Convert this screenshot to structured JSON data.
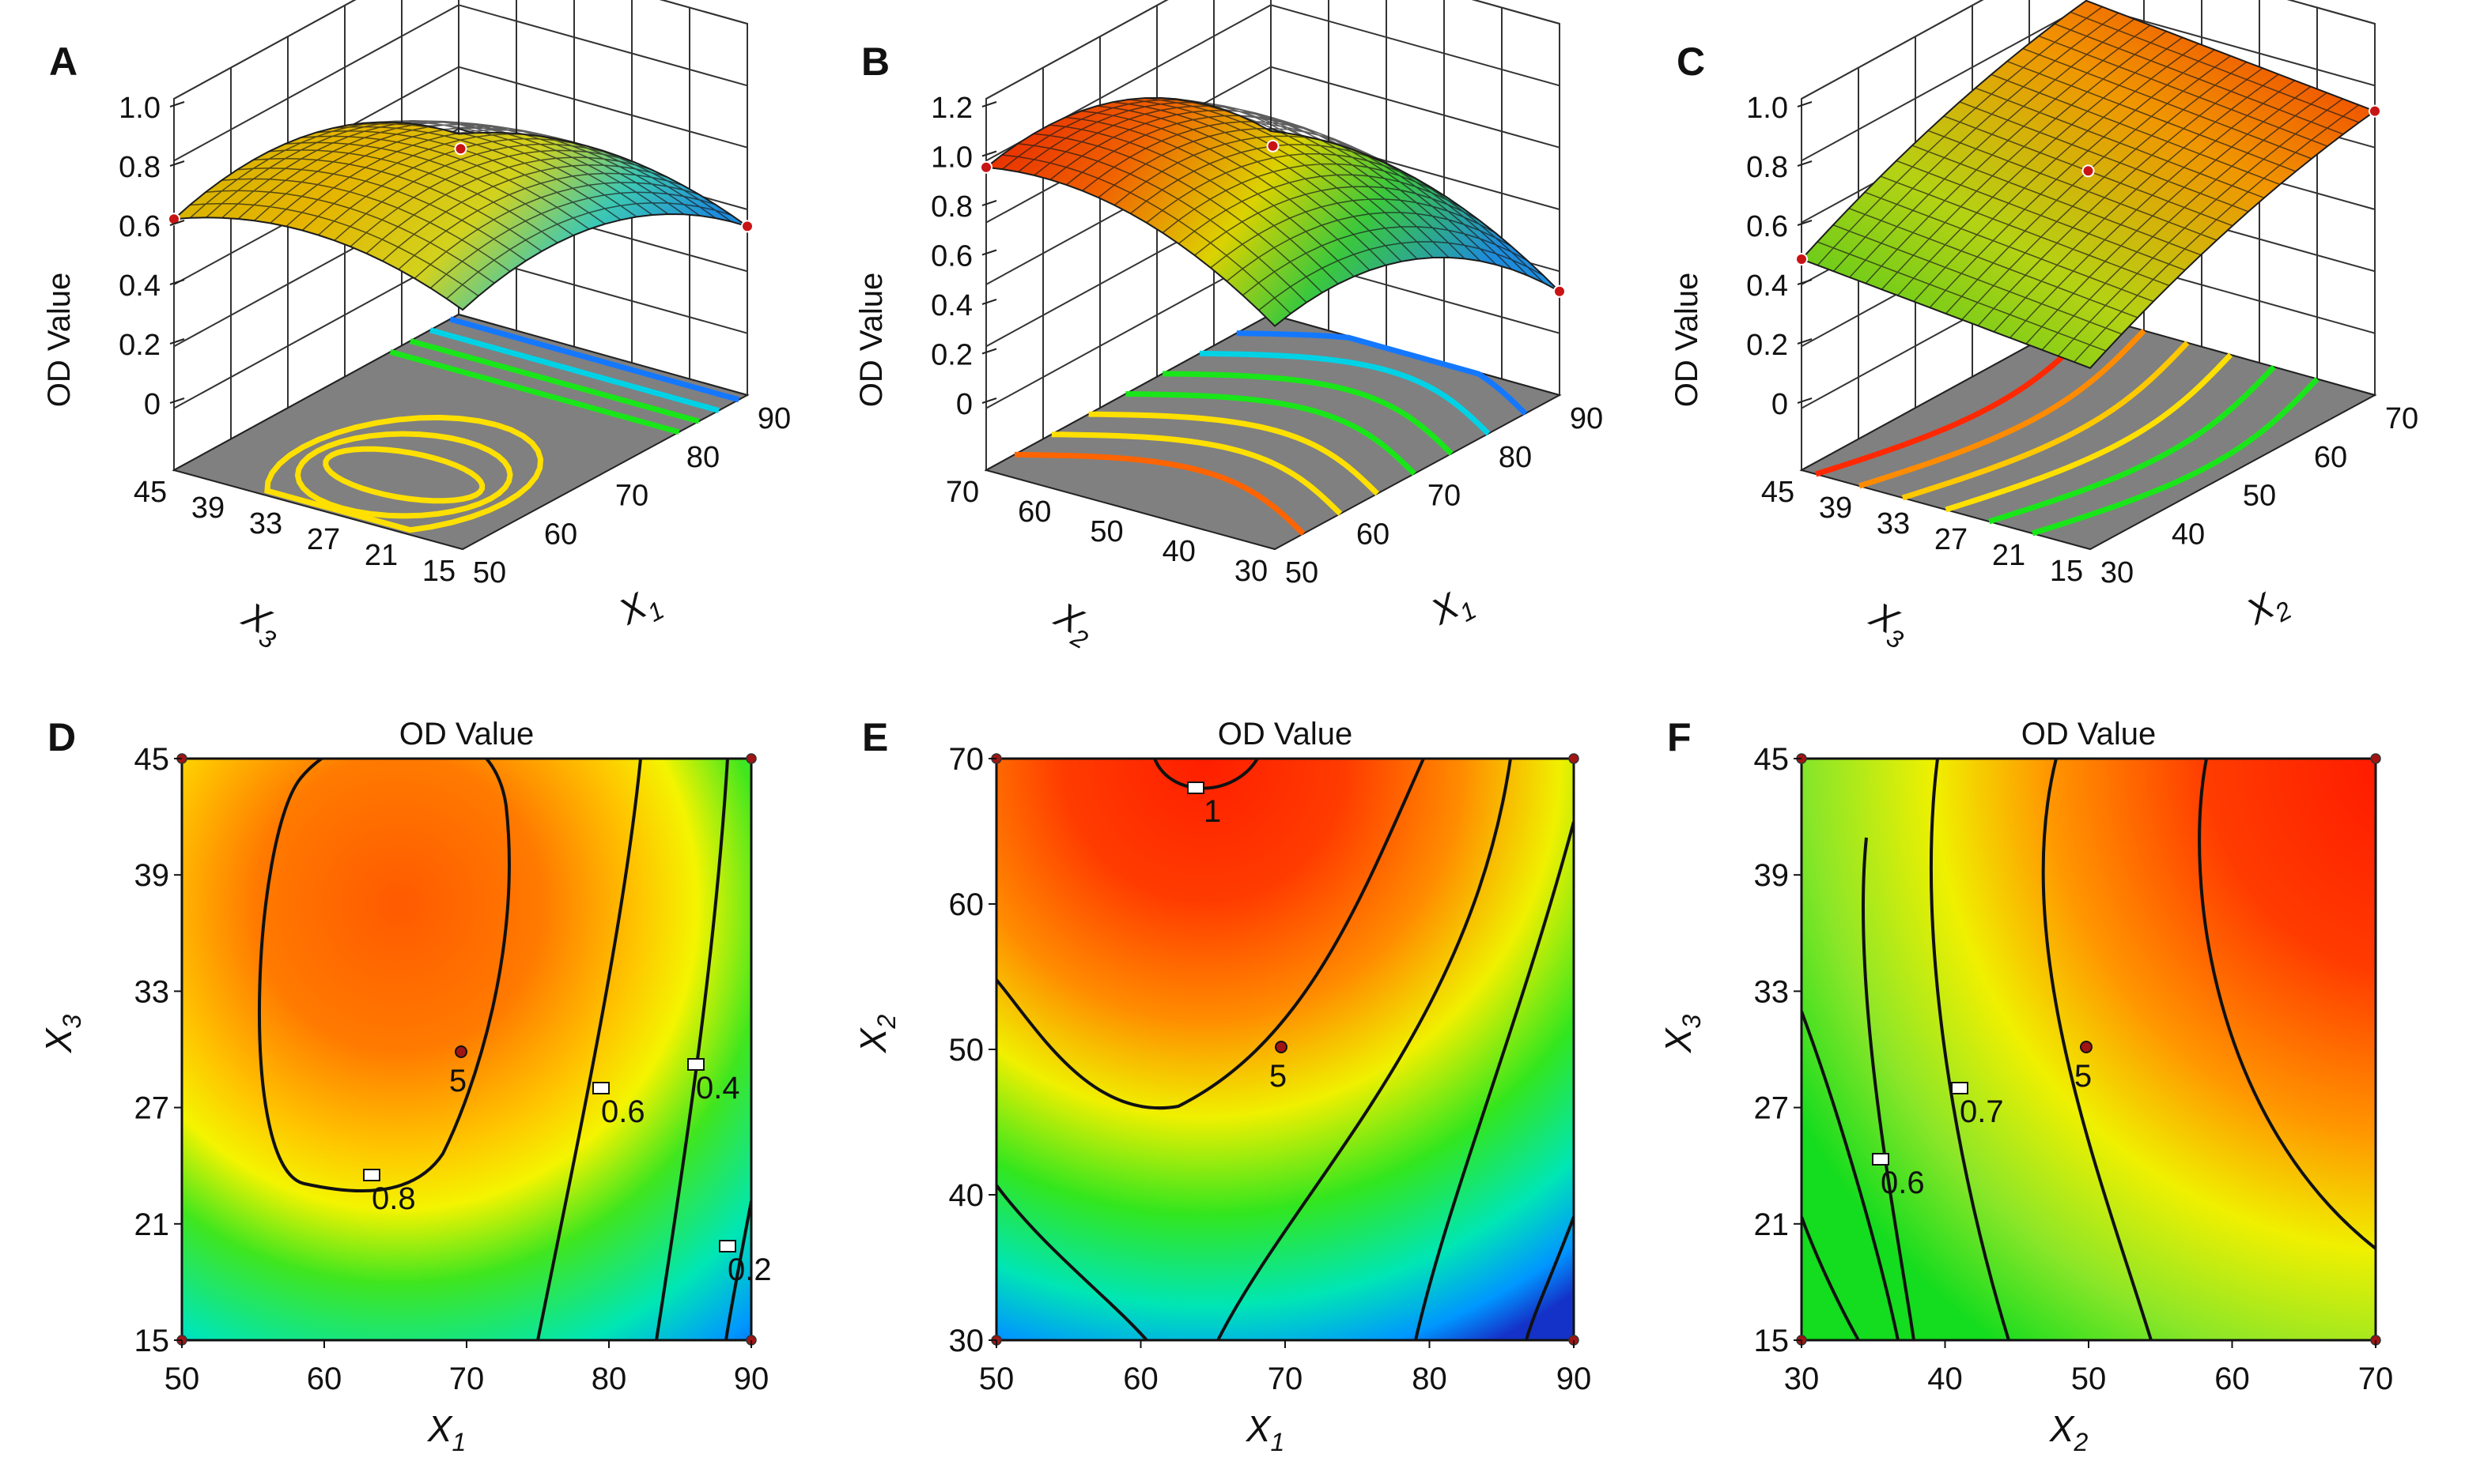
{
  "figure": {
    "surface_panels": [
      {
        "id": "A",
        "label": "A",
        "zlabel": "OD Value",
        "zticks": [
          "1.0",
          "0.8",
          "0.6",
          "0.4",
          "0.2",
          "0"
        ],
        "left_axis": {
          "var": "X",
          "sub": "3",
          "ticks": [
            "45",
            "39",
            "33",
            "27",
            "21",
            "15"
          ]
        },
        "right_axis": {
          "var": "X",
          "sub": "1",
          "ticks": [
            "50",
            "60",
            "70",
            "80",
            "90"
          ]
        },
        "floor_contours": [
          "#ffe000",
          "#ffe000",
          "#ffe000",
          "#19e619",
          "#19e619",
          "#00d2e6",
          "#1478ff"
        ]
      },
      {
        "id": "B",
        "label": "B",
        "zlabel": "OD Value",
        "zticks": [
          "1.2",
          "1.0",
          "0.8",
          "0.6",
          "0.4",
          "0.2",
          "0"
        ],
        "left_axis": {
          "var": "X",
          "sub": "2",
          "ticks": [
            "70",
            "60",
            "50",
            "40",
            "30"
          ]
        },
        "right_axis": {
          "var": "X",
          "sub": "1",
          "ticks": [
            "50",
            "60",
            "70",
            "80",
            "90"
          ]
        },
        "floor_contours": [
          "#ff6400",
          "#ffe000",
          "#ffe000",
          "#19e619",
          "#19e619",
          "#00d2e6",
          "#1478ff"
        ]
      },
      {
        "id": "C",
        "label": "C",
        "zlabel": "OD Value",
        "zticks": [
          "1.0",
          "0.8",
          "0.6",
          "0.4",
          "0.2",
          "0"
        ],
        "left_axis": {
          "var": "X",
          "sub": "3",
          "ticks": [
            "45",
            "39",
            "33",
            "27",
            "21",
            "15"
          ]
        },
        "right_axis": {
          "var": "X",
          "sub": "2",
          "ticks": [
            "30",
            "40",
            "50",
            "60",
            "70"
          ]
        },
        "floor_contours": [
          "#ff2800",
          "#ff8c00",
          "#ffc800",
          "#ffe000",
          "#19e619",
          "#19e619"
        ]
      }
    ],
    "contour_panels": [
      {
        "id": "D",
        "label": "D",
        "title": "OD Value",
        "x": {
          "var": "X",
          "sub": "1",
          "ticks": [
            "50",
            "60",
            "70",
            "80",
            "90"
          ]
        },
        "y": {
          "var": "X",
          "sub": "3",
          "ticks": [
            "45",
            "39",
            "33",
            "27",
            "21",
            "15"
          ]
        },
        "contour_labels": [
          "0.8",
          "0.6",
          "0.4",
          "0.2"
        ],
        "center_count": "5"
      },
      {
        "id": "E",
        "label": "E",
        "title": "OD Value",
        "x": {
          "var": "X",
          "sub": "1",
          "ticks": [
            "50",
            "60",
            "70",
            "80",
            "90"
          ]
        },
        "y": {
          "var": "X",
          "sub": "2",
          "ticks": [
            "70",
            "60",
            "50",
            "40",
            "30"
          ]
        },
        "contour_labels": [
          "1"
        ],
        "center_count": "5"
      },
      {
        "id": "F",
        "label": "F",
        "title": "OD Value",
        "x": {
          "var": "X",
          "sub": "2",
          "ticks": [
            "30",
            "40",
            "50",
            "60",
            "70"
          ]
        },
        "y": {
          "var": "X",
          "sub": "3",
          "ticks": [
            "45",
            "39",
            "33",
            "27",
            "21",
            "15"
          ]
        },
        "contour_labels": [
          "0.7",
          "0.6"
        ],
        "center_count": "5"
      }
    ]
  },
  "chart_data": [
    {
      "type": "heatmap",
      "panel": "A",
      "kind": "3D response surface",
      "x_variable": "X1",
      "x_range": [
        50,
        90
      ],
      "y_variable": "X3",
      "y_range": [
        15,
        45
      ],
      "z_label": "OD Value",
      "z_range": [
        0,
        1.0
      ],
      "design_points": [
        {
          "x": 70,
          "y": 30,
          "z": 0.85
        },
        {
          "x": 50,
          "y": 45,
          "z": 0.61
        },
        {
          "x": 90,
          "y": 15,
          "z": 0.02
        }
      ]
    },
    {
      "type": "heatmap",
      "panel": "B",
      "kind": "3D response surface",
      "x_variable": "X1",
      "x_range": [
        50,
        90
      ],
      "y_variable": "X2",
      "y_range": [
        30,
        70
      ],
      "z_label": "OD Value",
      "z_range": [
        0,
        1.2
      ],
      "design_points": [
        {
          "x": 70,
          "y": 50,
          "z": 0.85
        },
        {
          "x": 50,
          "y": 70,
          "z": 0.87
        },
        {
          "x": 90,
          "y": 30,
          "z": 0.02
        }
      ]
    },
    {
      "type": "heatmap",
      "panel": "C",
      "kind": "3D response surface",
      "x_variable": "X2",
      "x_range": [
        30,
        70
      ],
      "y_variable": "X3",
      "y_range": [
        15,
        45
      ],
      "z_label": "OD Value",
      "z_range": [
        0,
        1.0
      ],
      "design_points": [
        {
          "x": 50,
          "y": 30,
          "z": 0.85
        },
        {
          "x": 30,
          "y": 45,
          "z": 0.61
        },
        {
          "x": 70,
          "y": 15,
          "z": 0.88
        }
      ]
    },
    {
      "type": "heatmap",
      "panel": "D",
      "kind": "contour",
      "title": "OD Value",
      "x_variable": "X1",
      "x_range": [
        50,
        90
      ],
      "y_variable": "X3",
      "y_range": [
        15,
        45
      ],
      "contour_levels": [
        0.2,
        0.4,
        0.6,
        0.8
      ],
      "center_point": {
        "x": 70,
        "y": 30,
        "n": 5
      }
    },
    {
      "type": "heatmap",
      "panel": "E",
      "kind": "contour",
      "title": "OD Value",
      "x_variable": "X1",
      "x_range": [
        50,
        90
      ],
      "y_variable": "X2",
      "y_range": [
        30,
        70
      ],
      "contour_levels": [
        1
      ],
      "center_point": {
        "x": 70,
        "y": 50,
        "n": 5
      }
    },
    {
      "type": "heatmap",
      "panel": "F",
      "kind": "contour",
      "title": "OD Value",
      "x_variable": "X2",
      "x_range": [
        30,
        70
      ],
      "y_variable": "X3",
      "y_range": [
        15,
        45
      ],
      "contour_levels": [
        0.6,
        0.7
      ],
      "center_point": {
        "x": 50,
        "y": 30,
        "n": 5
      }
    }
  ]
}
